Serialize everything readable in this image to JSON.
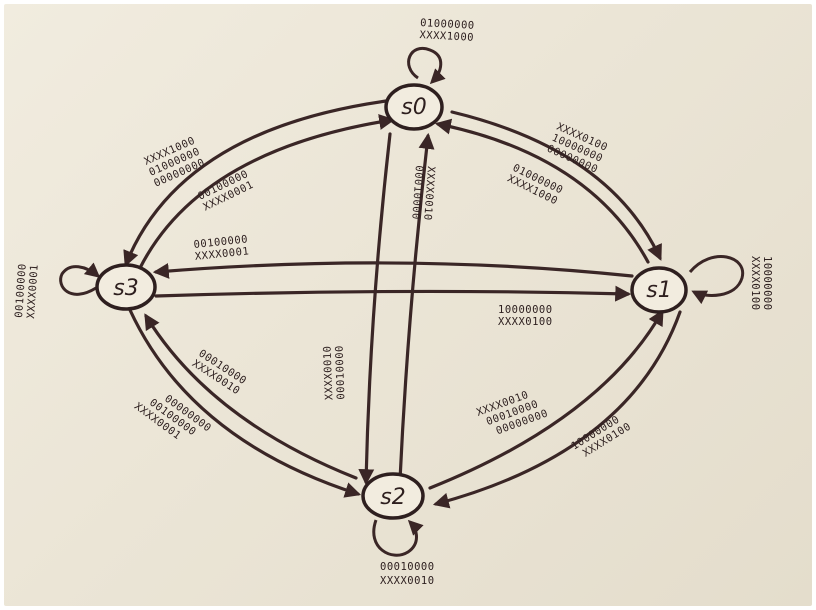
{
  "nodes": {
    "s0": "s0",
    "s1": "s1",
    "s2": "s2",
    "s3": "s3"
  },
  "labels": {
    "s0_self": [
      "01000000",
      "XXXX1000"
    ],
    "s0_to_s1": [
      "XXXX0100",
      "10000000",
      "00000000"
    ],
    "s1_to_s0": [
      "01000000",
      "XXXX1000"
    ],
    "s0_to_s3": [
      "XXXX1000",
      "01000000",
      "00000000"
    ],
    "s3_to_s0": [
      "00100000",
      "XXXX0001"
    ],
    "s0_to_s2": [
      "XXXX0010",
      "00010000"
    ],
    "s2_to_s0": [
      "XXXX0010",
      "00010000"
    ],
    "s1_self": [
      "10000000",
      "XXXX0100"
    ],
    "s1_to_s3": [
      "00100000",
      "XXXX0001"
    ],
    "s3_to_s1": [
      "10000000",
      "XXXX0100"
    ],
    "s3_self": [
      "00100000",
      "XXXX0001"
    ],
    "s3_to_s2": [
      "00010000",
      "XXXX0010"
    ],
    "s2_to_s3": [
      "00000000",
      "00100000",
      "XXXX0001"
    ],
    "s2_self": [
      "00010000",
      "XXXX0010"
    ],
    "s2_to_s1": [
      "XXXX0010",
      "00010000",
      "00000000"
    ],
    "s1_to_s2": [
      "10000000",
      "XXXX0100"
    ]
  },
  "colors": {
    "ink": "#2e1f1f",
    "paper": "#ece6d8"
  }
}
